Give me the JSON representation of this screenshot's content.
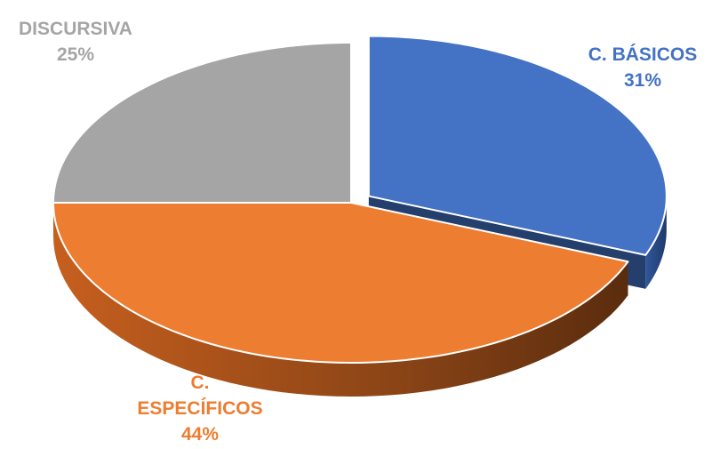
{
  "chart_data": {
    "type": "pie",
    "style": "3d",
    "start_angle_deg": 0,
    "direction": "clockwise",
    "slices": [
      {
        "key": "basicos",
        "label": "C. BÁSICOS",
        "value_label": "31%",
        "value": 31,
        "color": "#4472C4",
        "exploded": true
      },
      {
        "key": "especificos",
        "label": "C. ESPECÍFICOS",
        "value_label": "44%",
        "value": 44,
        "color": "#ED7D31",
        "exploded": false
      },
      {
        "key": "discursiva",
        "label": "DISCURSIVA",
        "value_label": "25%",
        "value": 25,
        "color": "#A5A5A5",
        "exploded": false
      }
    ]
  }
}
